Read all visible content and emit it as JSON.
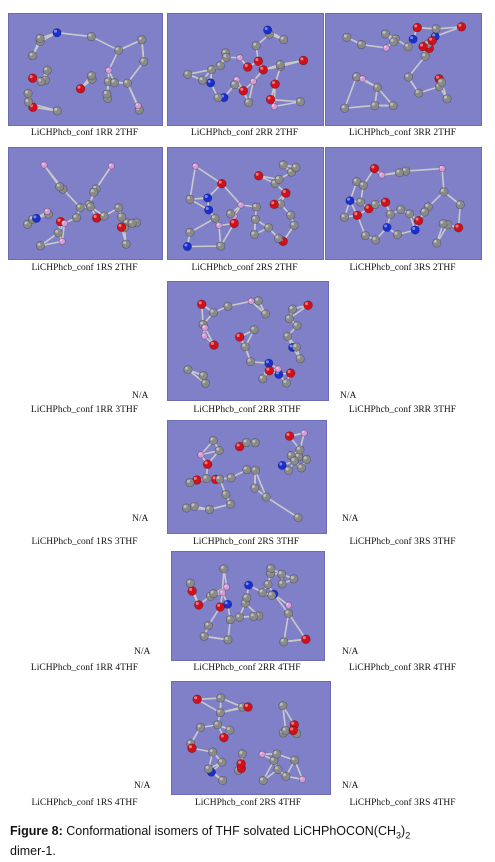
{
  "figure": {
    "rows": [
      {
        "cells": [
          {
            "label": "LiCHPhcb_conf 1RR 2THF",
            "image": true
          },
          {
            "label": "LiCHPhcb_conf 2RR 2THF",
            "image": true
          },
          {
            "label": "LiCHPhcb_conf 3RR 2THF",
            "image": true
          }
        ]
      },
      {
        "cells": [
          {
            "label": "LiCHPhcb_conf 1RS 2THF",
            "image": true
          },
          {
            "label": "LiCHPhcb_conf 2RS 2THF",
            "image": true
          },
          {
            "label": "LiCHPhcb_conf 3RS 2THF",
            "image": true
          }
        ]
      },
      {
        "cells": [
          {
            "label": "LiCHPhcb_conf 1RR 3THF",
            "image": false,
            "na": "N/A"
          },
          {
            "label": "LiCHPhcb_conf 2RR 3THF",
            "image": true
          },
          {
            "label": "LiCHPhcb_conf 3RR 3THF",
            "image": false,
            "na": "N/A"
          }
        ]
      },
      {
        "cells": [
          {
            "label": "LiCHPhcb_conf 1RS 3THF",
            "image": false,
            "na": "N/A"
          },
          {
            "label": "LiCHPhcb_conf 2RS 3THF",
            "image": true
          },
          {
            "label": "LiCHPhcb_conf 3RS 3THF",
            "image": false,
            "na": "N/A"
          }
        ]
      },
      {
        "cells": [
          {
            "label": "LiCHPhcb_conf 1RR 4THF",
            "image": false,
            "na": "N/A"
          },
          {
            "label": "LiCHPhcb_conf 2RR 4THF",
            "image": true
          },
          {
            "label": "LiCHPhcb_conf 3RR 4THF",
            "image": false,
            "na": "N/A"
          }
        ]
      },
      {
        "cells": [
          {
            "label": "LiCHPhcb_conf 1RS 4THF",
            "image": false,
            "na": "N/A"
          },
          {
            "label": "LiCHPhcb_conf 2RS 4THF",
            "image": true
          },
          {
            "label": "LiCHPhcb_conf 3RS 4THF",
            "image": false,
            "na": "N/A"
          }
        ]
      }
    ],
    "caption": {
      "prefix": "Figure 8:",
      "text": "Conformational isomers of THF solvated LiCHPhOCON(CH",
      "sub1": "3",
      "mid": ")",
      "sub2": "2",
      "tail": "dimer-1."
    },
    "colors": {
      "background": "#7f80c8",
      "carbon": "#8a8a8a",
      "oxygen": "#d0101a",
      "nitrogen": "#1a2fd0",
      "lithium": "#d79ad8",
      "bond": "#c9c9c9"
    }
  }
}
